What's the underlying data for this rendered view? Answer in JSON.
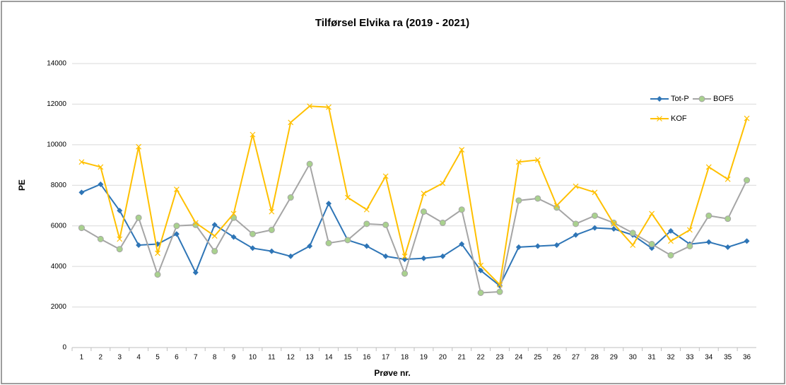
{
  "chart_data": {
    "type": "line",
    "title": "Tilførsel Elvika ra (2019 - 2021)",
    "x_label": "Prøve nr.",
    "y_label": "PE",
    "categories": [
      "1",
      "2",
      "3",
      "4",
      "5",
      "6",
      "7",
      "8",
      "9",
      "10",
      "11",
      "12",
      "13",
      "14",
      "15",
      "16",
      "17",
      "18",
      "19",
      "20",
      "21",
      "22",
      "23",
      "24",
      "25",
      "26",
      "27",
      "28",
      "29",
      "30",
      "31",
      "32",
      "33",
      "34",
      "35",
      "36"
    ],
    "series": [
      {
        "name": "Tot-P",
        "color": "#2e75b6",
        "marker": "diamond",
        "values": [
          7650,
          8050,
          6750,
          5050,
          5100,
          5600,
          3700,
          6050,
          5450,
          4900,
          4750,
          4500,
          5000,
          7100,
          5300,
          5000,
          4500,
          4350,
          4400,
          4500,
          5100,
          3800,
          3050,
          4950,
          5000,
          5050,
          5550,
          5900,
          5850,
          5550,
          4900,
          5750,
          5100,
          5200,
          4950,
          5250
        ]
      },
      {
        "name": "BOF5",
        "color": "#a5a5a5",
        "marker": "circle",
        "values": [
          5900,
          5350,
          4850,
          6400,
          3600,
          6000,
          6050,
          4750,
          6400,
          5600,
          5800,
          7400,
          9050,
          5150,
          5300,
          6100,
          6050,
          3650,
          6700,
          6150,
          6800,
          2700,
          2750,
          7250,
          7350,
          6900,
          6100,
          6500,
          6150,
          5650,
          5100,
          4550,
          5000,
          6500,
          6350,
          8250
        ]
      },
      {
        "name": "KOF",
        "color": "#ffc000",
        "marker": "x",
        "values": [
          9150,
          8900,
          5350,
          9900,
          4650,
          7800,
          6150,
          5500,
          6600,
          10500,
          6700,
          11100,
          11900,
          11850,
          7400,
          6800,
          8450,
          4500,
          7600,
          8100,
          9750,
          4050,
          3100,
          9150,
          9250,
          7000,
          7950,
          7650,
          6100,
          5050,
          6600,
          5250,
          5800,
          8900,
          8300,
          11300
        ]
      }
    ],
    "ylim": [
      0,
      14000
    ],
    "yticks": [
      0,
      2000,
      4000,
      6000,
      8000,
      10000,
      12000,
      14000
    ],
    "grid": true
  }
}
